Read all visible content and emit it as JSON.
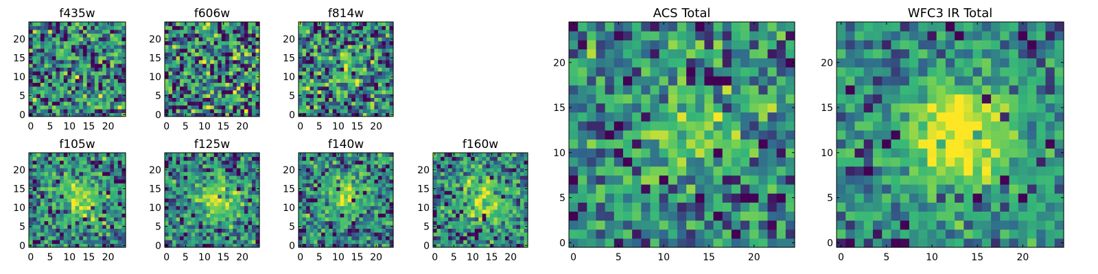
{
  "figure": {
    "colormap": [
      "#440154",
      "#31688e",
      "#35b779",
      "#7ad151",
      "#fde725"
    ],
    "grid_size": 25,
    "background": "#ffffff"
  },
  "chart_data": [
    {
      "type": "heatmap",
      "title": "f435w",
      "x_ticks": [
        0,
        5,
        10,
        15,
        20
      ],
      "y_ticks": [
        0,
        5,
        10,
        15,
        20
      ],
      "xlim": [
        -0.5,
        24.5
      ],
      "ylim": [
        -0.5,
        24.5
      ],
      "peak_center": [
        13,
        12
      ],
      "peak_strength": 0.05,
      "noise": 0.9,
      "seed": 11
    },
    {
      "type": "heatmap",
      "title": "f606w",
      "x_ticks": [
        0,
        5,
        10,
        15,
        20
      ],
      "y_ticks": [
        0,
        5,
        10,
        15,
        20
      ],
      "xlim": [
        -0.5,
        24.5
      ],
      "ylim": [
        -0.5,
        24.5
      ],
      "peak_center": [
        13,
        12
      ],
      "peak_strength": 0.05,
      "noise": 1.0,
      "seed": 23
    },
    {
      "type": "heatmap",
      "title": "f814w",
      "x_ticks": [
        0,
        5,
        10,
        15,
        20
      ],
      "y_ticks": [
        0,
        5,
        10,
        15,
        20
      ],
      "xlim": [
        -0.5,
        24.5
      ],
      "ylim": [
        -0.5,
        24.5
      ],
      "peak_center": [
        13,
        12
      ],
      "peak_strength": 0.25,
      "noise": 0.9,
      "seed": 37
    },
    {
      "type": "heatmap",
      "title": "f105w",
      "x_ticks": [
        0,
        5,
        10,
        15,
        20
      ],
      "y_ticks": [
        0,
        5,
        10,
        15,
        20
      ],
      "xlim": [
        -0.5,
        24.5
      ],
      "ylim": [
        -0.5,
        24.5
      ],
      "peak_center": [
        13,
        12
      ],
      "peak_strength": 0.45,
      "noise": 0.7,
      "seed": 41
    },
    {
      "type": "heatmap",
      "title": "f125w",
      "x_ticks": [
        0,
        5,
        10,
        15,
        20
      ],
      "y_ticks": [
        0,
        5,
        10,
        15,
        20
      ],
      "xlim": [
        -0.5,
        24.5
      ],
      "ylim": [
        -0.5,
        24.5
      ],
      "peak_center": [
        13,
        12
      ],
      "peak_strength": 0.45,
      "noise": 0.7,
      "seed": 53
    },
    {
      "type": "heatmap",
      "title": "f140w",
      "x_ticks": [
        0,
        5,
        10,
        15,
        20
      ],
      "y_ticks": [
        0,
        5,
        10,
        15,
        20
      ],
      "xlim": [
        -0.5,
        24.5
      ],
      "ylim": [
        -0.5,
        24.5
      ],
      "peak_center": [
        12,
        13
      ],
      "peak_strength": 0.45,
      "noise": 0.7,
      "seed": 67
    },
    {
      "type": "heatmap",
      "title": "f160w",
      "x_ticks": [
        0,
        5,
        10,
        15,
        20
      ],
      "y_ticks": [
        0,
        5,
        10,
        15,
        20
      ],
      "xlim": [
        -0.5,
        24.5
      ],
      "ylim": [
        -0.5,
        24.5
      ],
      "peak_center": [
        13,
        12
      ],
      "peak_strength": 0.5,
      "noise": 0.7,
      "seed": 71
    },
    {
      "type": "heatmap",
      "title": "ACS Total",
      "x_ticks": [
        0,
        5,
        10,
        15,
        20
      ],
      "y_ticks": [
        0,
        5,
        10,
        15,
        20
      ],
      "xlim": [
        -0.5,
        24.5
      ],
      "ylim": [
        -0.5,
        24.5
      ],
      "peak_center": [
        13,
        12
      ],
      "peak_strength": 0.35,
      "noise": 0.75,
      "seed": 89
    },
    {
      "type": "heatmap",
      "title": "WFC3 IR Total",
      "x_ticks": [
        0,
        5,
        10,
        15,
        20
      ],
      "y_ticks": [
        0,
        5,
        10,
        15,
        20
      ],
      "xlim": [
        -0.5,
        24.5
      ],
      "ylim": [
        -0.5,
        24.5
      ],
      "peak_center": [
        13,
        12
      ],
      "peak_strength": 0.75,
      "noise": 0.55,
      "seed": 97
    }
  ]
}
